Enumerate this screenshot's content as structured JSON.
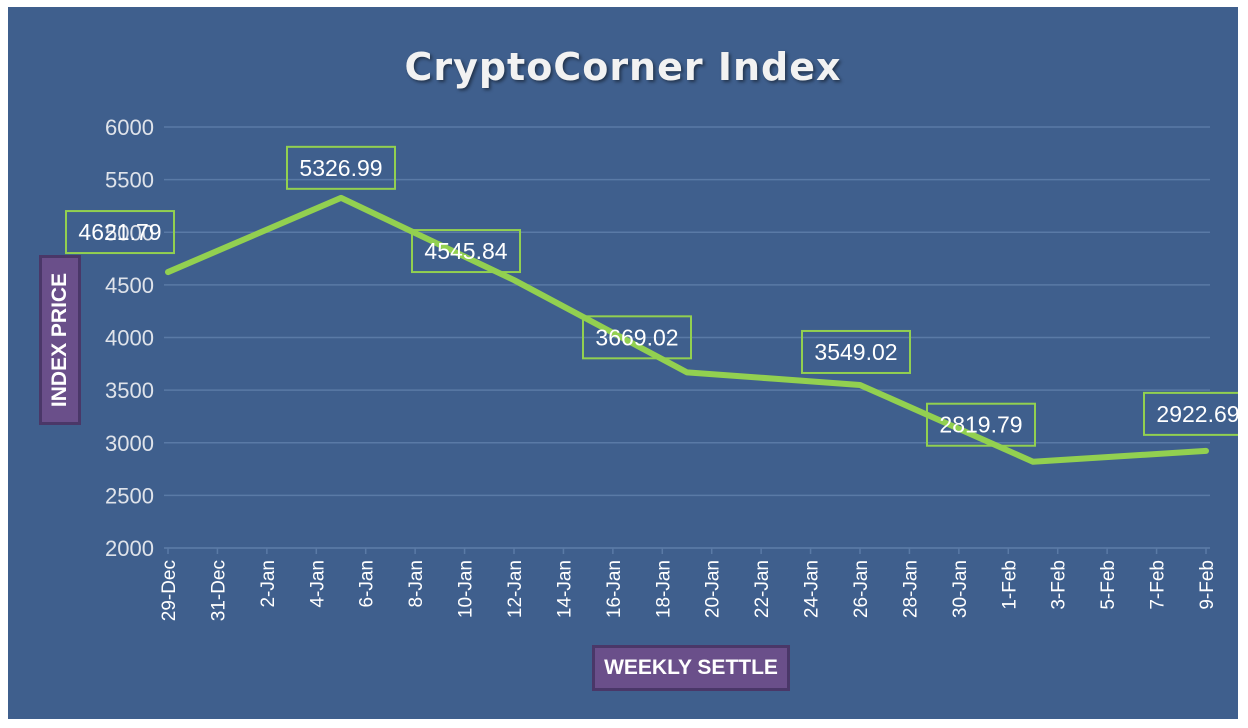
{
  "chart_data": {
    "type": "line",
    "title": "CryptoCorner Index",
    "xlabel": "WEEKLY SETTLE",
    "ylabel": "INDEX PRICE",
    "ylim": [
      2000,
      6000
    ],
    "yticks": [
      2000,
      2500,
      3000,
      3500,
      4000,
      4500,
      5000,
      5500,
      6000
    ],
    "xticks": [
      "29-Dec",
      "31-Dec",
      "2-Jan",
      "4-Jan",
      "6-Jan",
      "8-Jan",
      "10-Jan",
      "12-Jan",
      "14-Jan",
      "16-Jan",
      "18-Jan",
      "20-Jan",
      "22-Jan",
      "24-Jan",
      "26-Jan",
      "28-Jan",
      "30-Jan",
      "1-Feb",
      "3-Feb",
      "5-Feb",
      "7-Feb",
      "9-Feb"
    ],
    "grid": true,
    "series": [
      {
        "points": [
          {
            "x": "29-Dec",
            "y": 4621.79
          },
          {
            "x": "5-Jan",
            "y": 5326.99
          },
          {
            "x": "12-Jan",
            "y": 4545.84
          },
          {
            "x": "19-Jan",
            "y": 3669.02
          },
          {
            "x": "26-Jan",
            "y": 3549.02
          },
          {
            "x": "2-Feb",
            "y": 2819.79
          },
          {
            "x": "9-Feb",
            "y": 2922.69
          }
        ],
        "labels": [
          "4621.79",
          "5326.99",
          "4545.84",
          "3669.02",
          "3549.02",
          "2819.79",
          "2922.69"
        ]
      }
    ]
  },
  "colors": {
    "background": "#3f5f8d",
    "line": "#92d050",
    "gridline": "#5a7aa6",
    "axis_title_box": "#6a4f8a"
  }
}
